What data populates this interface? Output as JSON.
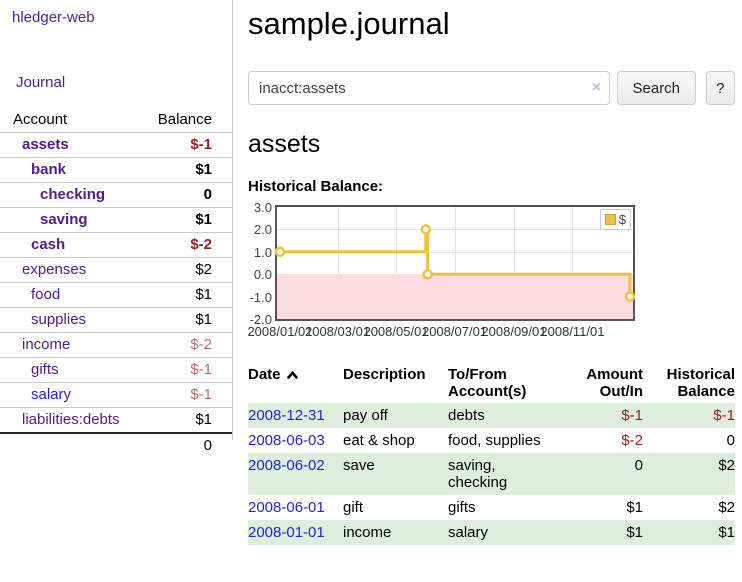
{
  "app": {
    "title": "hledger-web"
  },
  "nav": {
    "journal": "Journal"
  },
  "sidebar": {
    "header": {
      "account": "Account",
      "balance": "Balance"
    },
    "accounts": [
      {
        "name": "assets",
        "balance": "$-1"
      },
      {
        "name": "bank",
        "balance": "$1"
      },
      {
        "name": "checking",
        "balance": "0"
      },
      {
        "name": "saving",
        "balance": "$1"
      },
      {
        "name": "cash",
        "balance": "$-2"
      },
      {
        "name": "expenses",
        "balance": "$2"
      },
      {
        "name": "food",
        "balance": "$1"
      },
      {
        "name": "supplies",
        "balance": "$1"
      },
      {
        "name": "income",
        "balance": "$-2"
      },
      {
        "name": "gifts",
        "balance": "$-1"
      },
      {
        "name": "salary",
        "balance": "$-1"
      },
      {
        "name": "liabilities:debts",
        "balance": "$1"
      }
    ],
    "total": "0"
  },
  "main": {
    "title": "sample.journal",
    "search": {
      "value": "inacct:assets",
      "clear": "×",
      "button": "Search",
      "help": "?"
    },
    "heading": "assets",
    "chart_title": "Historical Balance:",
    "register": {
      "header": {
        "date": "Date",
        "description": "Description",
        "accounts": "To/From Account(s)",
        "amount": "Amount Out/In",
        "balance": "Historical Balance"
      },
      "rows": [
        {
          "date": "2008-12-31",
          "description": "pay off",
          "accounts": "debts",
          "amount": "$-1",
          "balance": "$-1"
        },
        {
          "date": "2008-06-03",
          "description": "eat & shop",
          "accounts": "food, supplies",
          "amount": "$-2",
          "balance": "0"
        },
        {
          "date": "2008-06-02",
          "description": "save",
          "accounts": "saving, checking",
          "amount": "0",
          "balance": "$2"
        },
        {
          "date": "2008-06-01",
          "description": "gift",
          "accounts": "gifts",
          "amount": "$1",
          "balance": "$2"
        },
        {
          "date": "2008-01-01",
          "description": "income",
          "accounts": "salary",
          "amount": "$1",
          "balance": "$1"
        }
      ]
    }
  },
  "chart_data": {
    "type": "line",
    "step": true,
    "title": "Historical Balance",
    "series": [
      {
        "name": "$",
        "color": "#EDC240",
        "points": [
          [
            "2008/01/01",
            1
          ],
          [
            "2008/06/01",
            2
          ],
          [
            "2008/06/03",
            0
          ],
          [
            "2008/12/31",
            -1
          ]
        ]
      }
    ],
    "ylim": [
      -2,
      3
    ],
    "yticks": [
      "3.0",
      "2.0",
      "1.0",
      "0.0",
      "-1.0",
      "-2.0"
    ],
    "xticks": [
      "2008/01/01",
      "2008/03/01",
      "2008/05/01",
      "2008/07/01",
      "2008/09/01",
      "2008/11/01"
    ],
    "x_range": [
      "2008/01/01",
      "2008/12/31"
    ],
    "legend": {
      "label": "$",
      "position": "top-right"
    },
    "grid": true,
    "negative_region_color": "#fbdcdc",
    "zero_line_color": "#8b0000"
  },
  "colors": {
    "accent_purple": "#551a8b",
    "link_blue": "#2323dd",
    "negative_red": "#9d1d1d",
    "dim_negative_rose": "#c26868",
    "row_stripe_green": "#ddeedd",
    "series_gold": "#EDC240"
  }
}
